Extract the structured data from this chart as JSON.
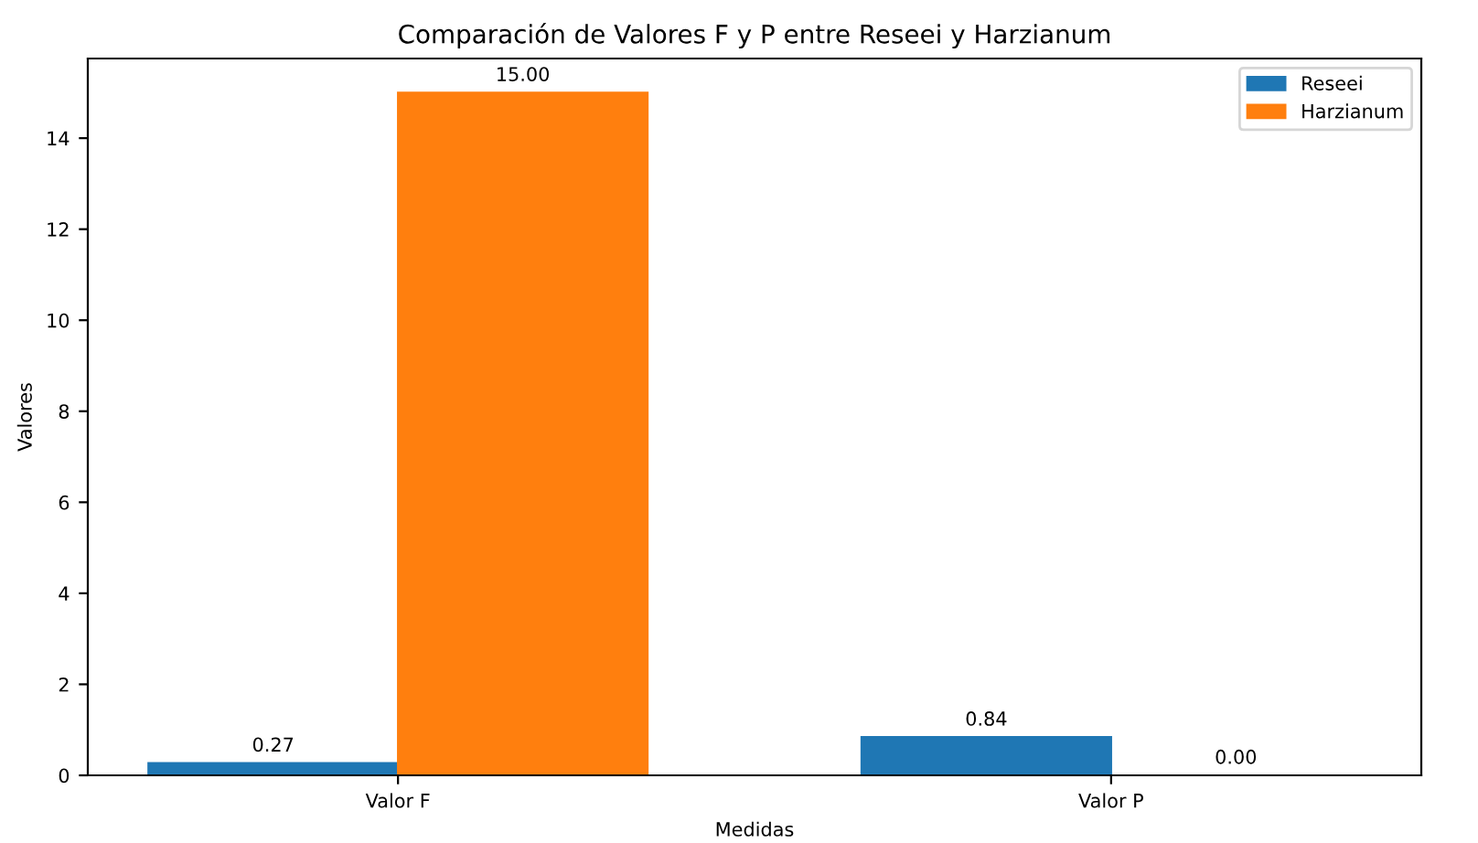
{
  "chart_data": {
    "type": "bar",
    "title": "Comparación de Valores F y P entre Reseei y Harzianum",
    "xlabel": "Medidas",
    "ylabel": "Valores",
    "categories": [
      "Valor F",
      "Valor P"
    ],
    "series": [
      {
        "name": "Reseei",
        "color": "#1f77b4",
        "values": [
          0.27,
          0.84
        ],
        "value_labels": [
          "0.27",
          "0.84"
        ]
      },
      {
        "name": "Harzianum",
        "color": "#ff7f0e",
        "values": [
          15.0,
          0.0
        ],
        "value_labels": [
          "15.00",
          "0.00"
        ]
      }
    ],
    "ylim": [
      0,
      15.75
    ],
    "yticks": [
      0,
      2,
      4,
      6,
      8,
      10,
      12,
      14
    ],
    "grid": false,
    "legend": "top right"
  }
}
